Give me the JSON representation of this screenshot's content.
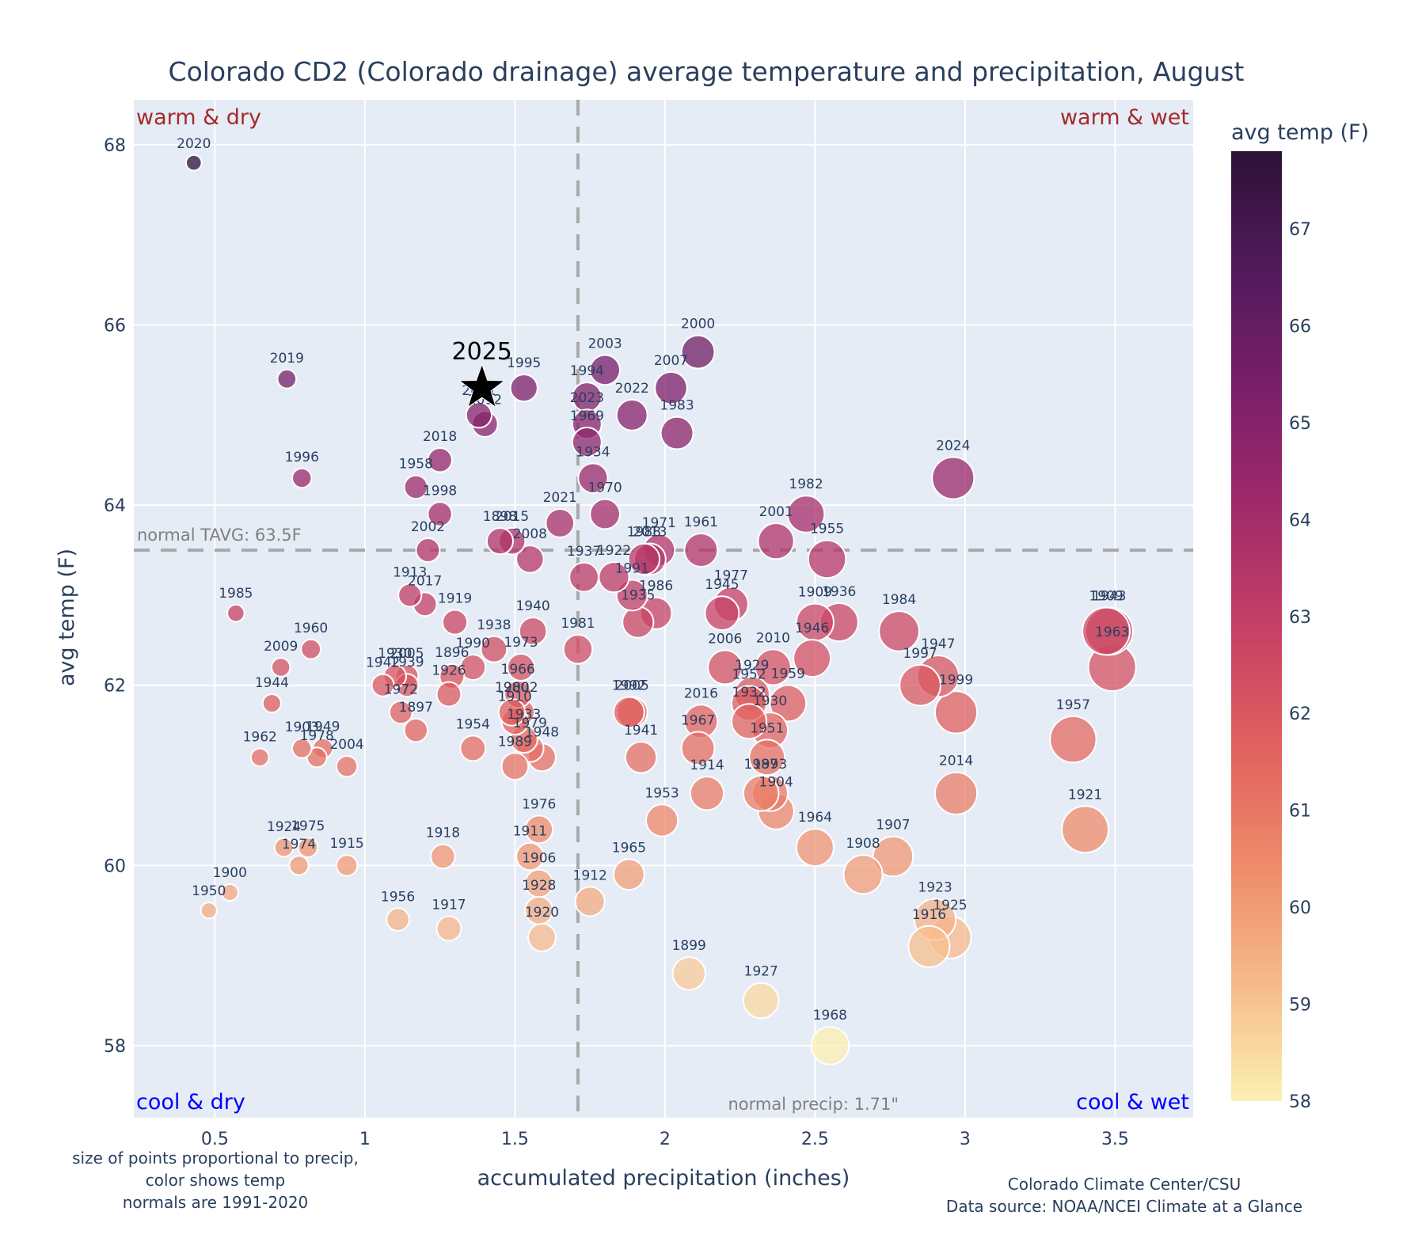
{
  "chart_data": {
    "type": "scatter",
    "title": "Colorado CD2 (Colorado drainage) average temperature and precipitation, August",
    "xlabel": "accumulated precipitation (inches)",
    "ylabel": "avg temp (F)",
    "xlim": [
      0.23,
      3.76
    ],
    "ylim": [
      57.2,
      68.5
    ],
    "xticks": [
      0.5,
      1,
      1.5,
      2,
      2.5,
      3,
      3.5
    ],
    "xtick_labels": [
      "0.5",
      "1",
      "1.5",
      "2",
      "2.5",
      "3",
      "3.5"
    ],
    "yticks": [
      58,
      60,
      62,
      64,
      66,
      68
    ],
    "ytick_labels": [
      "58",
      "60",
      "62",
      "64",
      "66",
      "68"
    ],
    "grid": true,
    "normal_temp": 63.5,
    "normal_temp_label": "normal TAVG: 63.5F",
    "normal_precip": 1.71,
    "normal_precip_label": "normal precip: 1.71\"",
    "quadrant_labels": {
      "top_left": "warm & dry",
      "top_right": "warm & wet",
      "bottom_left": "cool & dry",
      "bottom_right": "cool & wet"
    },
    "colorbar": {
      "title": "avg temp (F)",
      "range": [
        58,
        67.8
      ],
      "ticks": [
        58,
        59,
        60,
        61,
        62,
        63,
        64,
        65,
        66,
        67
      ],
      "tick_labels": [
        "58",
        "59",
        "60",
        "61",
        "62",
        "63",
        "64",
        "65",
        "66",
        "67"
      ],
      "colorscale": [
        "#fcf0b2",
        "#f6b98a",
        "#ee8a6a",
        "#e0605e",
        "#c54065",
        "#a02a6b",
        "#7a1f6a",
        "#521a5b",
        "#2c1238"
      ]
    },
    "highlight": {
      "year": "2025",
      "precip": 1.39,
      "temp": 65.3,
      "marker": "star"
    },
    "points": [
      {
        "year": "2020",
        "precip": 0.43,
        "temp": 67.8
      },
      {
        "year": "2019",
        "precip": 0.74,
        "temp": 65.4
      },
      {
        "year": "1996",
        "precip": 0.79,
        "temp": 64.3
      },
      {
        "year": "1985",
        "precip": 0.57,
        "temp": 62.8
      },
      {
        "year": "1960",
        "precip": 0.82,
        "temp": 62.4
      },
      {
        "year": "2009",
        "precip": 0.72,
        "temp": 62.2
      },
      {
        "year": "1944",
        "precip": 0.69,
        "temp": 61.8
      },
      {
        "year": "1962",
        "precip": 0.65,
        "temp": 61.2
      },
      {
        "year": "1903",
        "precip": 0.79,
        "temp": 61.3
      },
      {
        "year": "1949",
        "precip": 0.86,
        "temp": 61.3
      },
      {
        "year": "1978",
        "precip": 0.84,
        "temp": 61.2
      },
      {
        "year": "2004",
        "precip": 0.94,
        "temp": 61.1
      },
      {
        "year": "1924",
        "precip": 0.73,
        "temp": 60.2
      },
      {
        "year": "1975",
        "precip": 0.81,
        "temp": 60.2
      },
      {
        "year": "1974",
        "precip": 0.78,
        "temp": 60.0
      },
      {
        "year": "1915",
        "precip": 0.94,
        "temp": 60.0
      },
      {
        "year": "1900",
        "precip": 0.55,
        "temp": 59.7
      },
      {
        "year": "1950",
        "precip": 0.48,
        "temp": 59.5
      },
      {
        "year": "1995",
        "precip": 1.53,
        "temp": 65.3
      },
      {
        "year": "2011",
        "precip": 1.38,
        "temp": 65.0
      },
      {
        "year": "2012",
        "precip": 1.4,
        "temp": 64.9
      },
      {
        "year": "2018",
        "precip": 1.25,
        "temp": 64.5
      },
      {
        "year": "1958",
        "precip": 1.17,
        "temp": 64.2
      },
      {
        "year": "1998",
        "precip": 1.25,
        "temp": 63.9
      },
      {
        "year": "2002",
        "precip": 1.21,
        "temp": 63.5
      },
      {
        "year": "1898",
        "precip": 1.45,
        "temp": 63.6
      },
      {
        "year": "2015",
        "precip": 1.49,
        "temp": 63.6
      },
      {
        "year": "2008",
        "precip": 1.55,
        "temp": 63.4
      },
      {
        "year": "1913",
        "precip": 1.15,
        "temp": 63.0
      },
      {
        "year": "2017",
        "precip": 1.2,
        "temp": 62.9
      },
      {
        "year": "1919",
        "precip": 1.3,
        "temp": 62.7
      },
      {
        "year": "1938",
        "precip": 1.43,
        "temp": 62.4
      },
      {
        "year": "1940",
        "precip": 1.56,
        "temp": 62.6
      },
      {
        "year": "1990",
        "precip": 1.36,
        "temp": 62.2
      },
      {
        "year": "1973",
        "precip": 1.52,
        "temp": 62.2
      },
      {
        "year": "1896",
        "precip": 1.29,
        "temp": 62.1
      },
      {
        "year": "1930",
        "precip": 1.1,
        "temp": 62.1
      },
      {
        "year": "2005",
        "precip": 1.14,
        "temp": 62.1
      },
      {
        "year": "1942",
        "precip": 1.06,
        "temp": 62.0
      },
      {
        "year": "1939",
        "precip": 1.14,
        "temp": 62.0
      },
      {
        "year": "1926",
        "precip": 1.28,
        "temp": 61.9
      },
      {
        "year": "1972",
        "precip": 1.12,
        "temp": 61.7
      },
      {
        "year": "1966",
        "precip": 1.51,
        "temp": 61.9
      },
      {
        "year": "1980",
        "precip": 1.49,
        "temp": 61.7
      },
      {
        "year": "2002b",
        "precip": 1.52,
        "temp": 61.7
      },
      {
        "year": "1910",
        "precip": 1.5,
        "temp": 61.6
      },
      {
        "year": "1897",
        "precip": 1.17,
        "temp": 61.5
      },
      {
        "year": "1954",
        "precip": 1.36,
        "temp": 61.3
      },
      {
        "year": "1933",
        "precip": 1.53,
        "temp": 61.4
      },
      {
        "year": "1979",
        "precip": 1.55,
        "temp": 61.3
      },
      {
        "year": "1948",
        "precip": 1.59,
        "temp": 61.2
      },
      {
        "year": "1989",
        "precip": 1.5,
        "temp": 61.1
      },
      {
        "year": "1976",
        "precip": 1.58,
        "temp": 60.4
      },
      {
        "year": "1911",
        "precip": 1.55,
        "temp": 60.1
      },
      {
        "year": "1906",
        "precip": 1.58,
        "temp": 59.8
      },
      {
        "year": "1928",
        "precip": 1.58,
        "temp": 59.5
      },
      {
        "year": "1920",
        "precip": 1.59,
        "temp": 59.2
      },
      {
        "year": "1918",
        "precip": 1.26,
        "temp": 60.1
      },
      {
        "year": "1956",
        "precip": 1.11,
        "temp": 59.4
      },
      {
        "year": "1917",
        "precip": 1.28,
        "temp": 59.3
      },
      {
        "year": "1912",
        "precip": 1.75,
        "temp": 59.6
      },
      {
        "year": "1965",
        "precip": 1.88,
        "temp": 59.9
      },
      {
        "year": "2003",
        "precip": 1.8,
        "temp": 65.5
      },
      {
        "year": "1994",
        "precip": 1.74,
        "temp": 65.2
      },
      {
        "year": "2023",
        "precip": 1.74,
        "temp": 64.9
      },
      {
        "year": "1969",
        "precip": 1.74,
        "temp": 64.7
      },
      {
        "year": "1934",
        "precip": 1.76,
        "temp": 64.3
      },
      {
        "year": "1970",
        "precip": 1.8,
        "temp": 63.9
      },
      {
        "year": "2021",
        "precip": 1.65,
        "temp": 63.8
      },
      {
        "year": "1937",
        "precip": 1.73,
        "temp": 63.2
      },
      {
        "year": "1922",
        "precip": 1.83,
        "temp": 63.2
      },
      {
        "year": "2022",
        "precip": 1.89,
        "temp": 65.0
      },
      {
        "year": "2000",
        "precip": 2.11,
        "temp": 65.7
      },
      {
        "year": "2007",
        "precip": 2.02,
        "temp": 65.3
      },
      {
        "year": "1983",
        "precip": 2.04,
        "temp": 64.8
      },
      {
        "year": "1971",
        "precip": 1.98,
        "temp": 63.5
      },
      {
        "year": "1988",
        "precip": 1.93,
        "temp": 63.4
      },
      {
        "year": "2013",
        "precip": 1.95,
        "temp": 63.4
      },
      {
        "year": "1991",
        "precip": 1.89,
        "temp": 63.0
      },
      {
        "year": "1986",
        "precip": 1.97,
        "temp": 62.8
      },
      {
        "year": "1935",
        "precip": 1.91,
        "temp": 62.7
      },
      {
        "year": "1981",
        "precip": 1.71,
        "temp": 62.4
      },
      {
        "year": "1961",
        "precip": 2.12,
        "temp": 63.5
      },
      {
        "year": "1945",
        "precip": 2.19,
        "temp": 62.8
      },
      {
        "year": "1977",
        "precip": 2.22,
        "temp": 62.9
      },
      {
        "year": "2006",
        "precip": 2.2,
        "temp": 62.2
      },
      {
        "year": "1992",
        "precip": 1.88,
        "temp": 61.7
      },
      {
        "year": "2005b",
        "precip": 1.89,
        "temp": 61.7
      },
      {
        "year": "1941",
        "precip": 1.92,
        "temp": 61.2
      },
      {
        "year": "1967",
        "precip": 2.11,
        "temp": 61.3
      },
      {
        "year": "2016",
        "precip": 2.12,
        "temp": 61.6
      },
      {
        "year": "1914",
        "precip": 2.14,
        "temp": 60.8
      },
      {
        "year": "1953",
        "precip": 1.99,
        "temp": 60.5
      },
      {
        "year": "1899",
        "precip": 2.08,
        "temp": 58.8
      },
      {
        "year": "1927",
        "precip": 2.32,
        "temp": 58.5
      },
      {
        "year": "1968",
        "precip": 2.55,
        "temp": 58.0
      },
      {
        "year": "2001",
        "precip": 2.37,
        "temp": 63.6
      },
      {
        "year": "1982",
        "precip": 2.47,
        "temp": 63.9
      },
      {
        "year": "1955",
        "precip": 2.54,
        "temp": 63.4
      },
      {
        "year": "2010",
        "precip": 2.36,
        "temp": 62.2
      },
      {
        "year": "1929",
        "precip": 2.29,
        "temp": 61.9
      },
      {
        "year": "1952",
        "precip": 2.28,
        "temp": 61.8
      },
      {
        "year": "1959",
        "precip": 2.41,
        "temp": 61.8
      },
      {
        "year": "1932",
        "precip": 2.28,
        "temp": 61.6
      },
      {
        "year": "1930b",
        "precip": 2.35,
        "temp": 61.5
      },
      {
        "year": "1951",
        "precip": 2.34,
        "temp": 61.2
      },
      {
        "year": "1987",
        "precip": 2.32,
        "temp": 60.8
      },
      {
        "year": "1993",
        "precip": 2.35,
        "temp": 60.8
      },
      {
        "year": "1904",
        "precip": 2.37,
        "temp": 60.6
      },
      {
        "year": "1909",
        "precip": 2.5,
        "temp": 62.7
      },
      {
        "year": "1936",
        "precip": 2.58,
        "temp": 62.7
      },
      {
        "year": "1946",
        "precip": 2.49,
        "temp": 62.3
      },
      {
        "year": "1964",
        "precip": 2.5,
        "temp": 60.2
      },
      {
        "year": "1908",
        "precip": 2.66,
        "temp": 59.9
      },
      {
        "year": "1907",
        "precip": 2.76,
        "temp": 60.1
      },
      {
        "year": "2024",
        "precip": 2.96,
        "temp": 64.3
      },
      {
        "year": "1984",
        "precip": 2.78,
        "temp": 62.6
      },
      {
        "year": "1947",
        "precip": 2.91,
        "temp": 62.1
      },
      {
        "year": "1997",
        "precip": 2.85,
        "temp": 62.0
      },
      {
        "year": "1999",
        "precip": 2.97,
        "temp": 61.7
      },
      {
        "year": "2014",
        "precip": 2.97,
        "temp": 60.8
      },
      {
        "year": "1923",
        "precip": 2.9,
        "temp": 59.4
      },
      {
        "year": "1916",
        "precip": 2.88,
        "temp": 59.1
      },
      {
        "year": "1925",
        "precip": 2.95,
        "temp": 59.2
      },
      {
        "year": "1909b",
        "precip": 3.47,
        "temp": 62.6
      },
      {
        "year": "1943",
        "precip": 3.48,
        "temp": 62.6
      },
      {
        "year": "1963",
        "precip": 3.49,
        "temp": 62.2
      },
      {
        "year": "1957",
        "precip": 3.36,
        "temp": 61.4
      },
      {
        "year": "1921",
        "precip": 3.4,
        "temp": 60.4
      }
    ]
  },
  "notes": {
    "left": [
      "size of points proportional to precip,",
      "color shows temp",
      "normals are 1991-2020"
    ],
    "right": [
      "Colorado Climate Center/CSU",
      "Data source: NOAA/NCEI Climate at a Glance"
    ]
  }
}
